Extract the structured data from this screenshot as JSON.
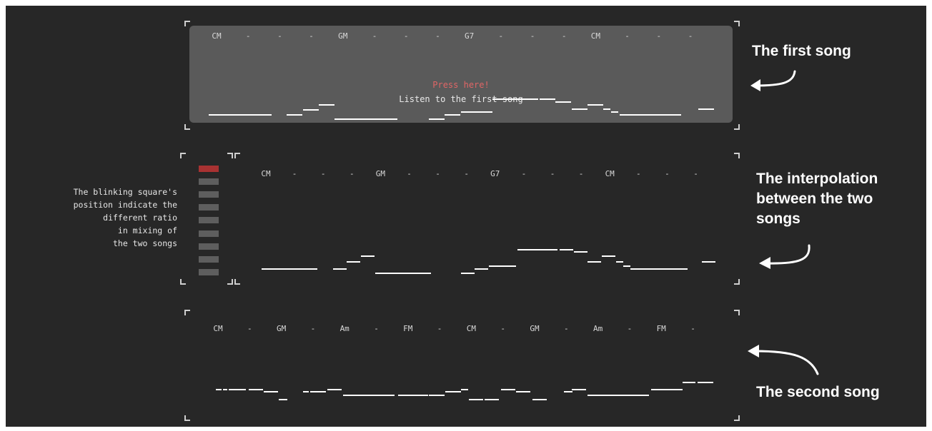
{
  "song1": {
    "chords": [
      "CM",
      "-",
      "-",
      "-",
      "GM",
      "-",
      "-",
      "-",
      "G7",
      "-",
      "-",
      "-",
      "CM",
      "-",
      "-",
      "-"
    ],
    "press_label": "Press here!",
    "listen_label": "Listen to the first song"
  },
  "interpolation": {
    "chords": [
      "CM",
      "-",
      "-",
      "-",
      "GM",
      "-",
      "-",
      "-",
      "G7",
      "-",
      "-",
      "-",
      "CM",
      "-",
      "-",
      "-"
    ],
    "ratio_square_count": 9,
    "active_square_index": 0,
    "description": "The blinking square's\nposition indicate the\ndifferent ratio\nin mixing of\nthe two songs"
  },
  "song2": {
    "chords": [
      "CM",
      "-",
      "GM",
      "-",
      "Am",
      "-",
      "FM",
      "-",
      "CM",
      "-",
      "GM",
      "-",
      "Am",
      "-",
      "FM",
      "-"
    ]
  },
  "annotations": {
    "first_song": "The first song",
    "interpolation": "The interpolation\nbetween the two\nsongs",
    "second_song": "The second song"
  },
  "colors": {
    "background": "#272727",
    "panel": "#5a5a5a",
    "accent": "#e06666",
    "active_square": "#a83232"
  }
}
